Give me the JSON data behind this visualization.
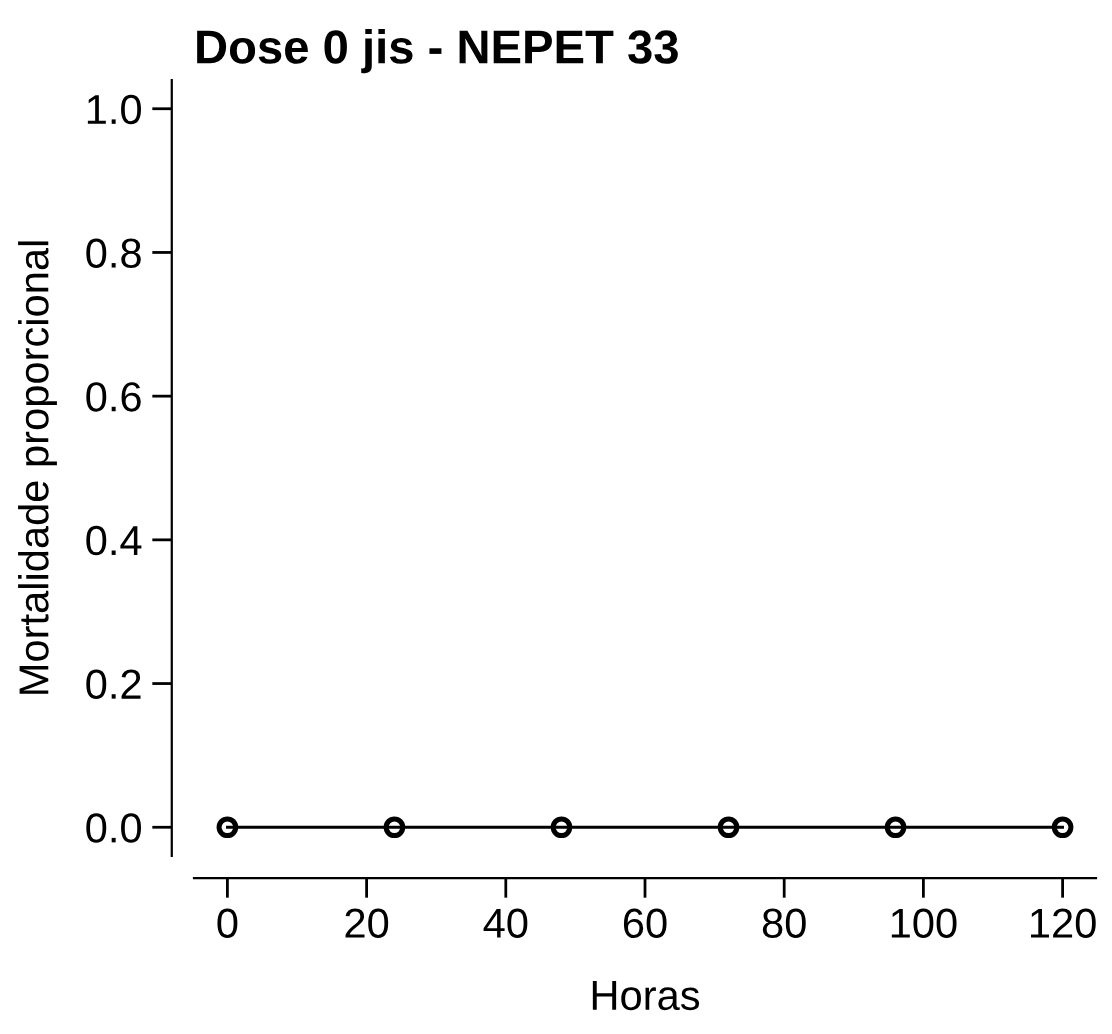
{
  "chart_data": {
    "type": "scatter",
    "title": "Dose 0 jis - NEPET 33",
    "xlabel": "Horas",
    "ylabel": "Mortalidade proporcional",
    "x": [
      0,
      24,
      48,
      72,
      96,
      120
    ],
    "series": [
      {
        "color": "#000000",
        "values": [
          0,
          0,
          0,
          0,
          0,
          0
        ],
        "marker": "circle"
      },
      {
        "type": "line",
        "color": "#000000",
        "x": [
          0,
          120
        ],
        "values": [
          0,
          0
        ],
        "marker": "none",
        "line_style": "solid"
      }
    ],
    "xlim": [
      -4.8,
      124.8
    ],
    "ylim": [
      -0.04,
      1.04
    ],
    "xticks": [
      0,
      20,
      40,
      60,
      80,
      100,
      120
    ],
    "yticks": [
      {
        "value": 0,
        "label": "0.0"
      },
      {
        "value": 0.2,
        "label": "0.2"
      },
      {
        "value": 0.4,
        "label": "0.4"
      },
      {
        "value": 0.6,
        "label": "0.6"
      },
      {
        "value": 0.8,
        "label": "0.8"
      },
      {
        "value": 1,
        "label": "1.0"
      }
    ],
    "grid": false,
    "legend": false
  }
}
